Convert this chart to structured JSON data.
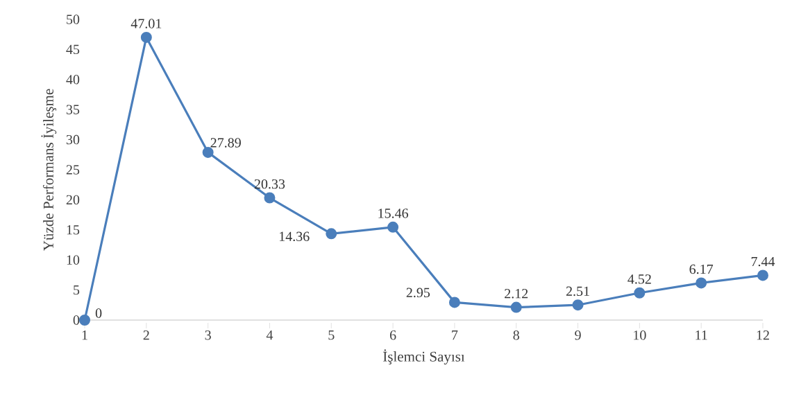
{
  "chart_data": {
    "type": "line",
    "xlabel": "İşlemci Sayısı",
    "ylabel": "Yüzde Performans İyileşme",
    "categories": [
      "1",
      "2",
      "3",
      "4",
      "5",
      "6",
      "7",
      "8",
      "9",
      "10",
      "11",
      "12"
    ],
    "values": [
      0,
      47.01,
      27.89,
      20.33,
      14.36,
      15.46,
      2.95,
      2.12,
      2.51,
      4.52,
      6.17,
      7.44
    ],
    "color": "#4a7ebb",
    "marker": "circle",
    "data_labels": true,
    "ylim": [
      0,
      50
    ],
    "yticks": [
      0,
      5,
      10,
      15,
      20,
      25,
      30,
      35,
      40,
      45,
      50
    ],
    "grid": false
  }
}
